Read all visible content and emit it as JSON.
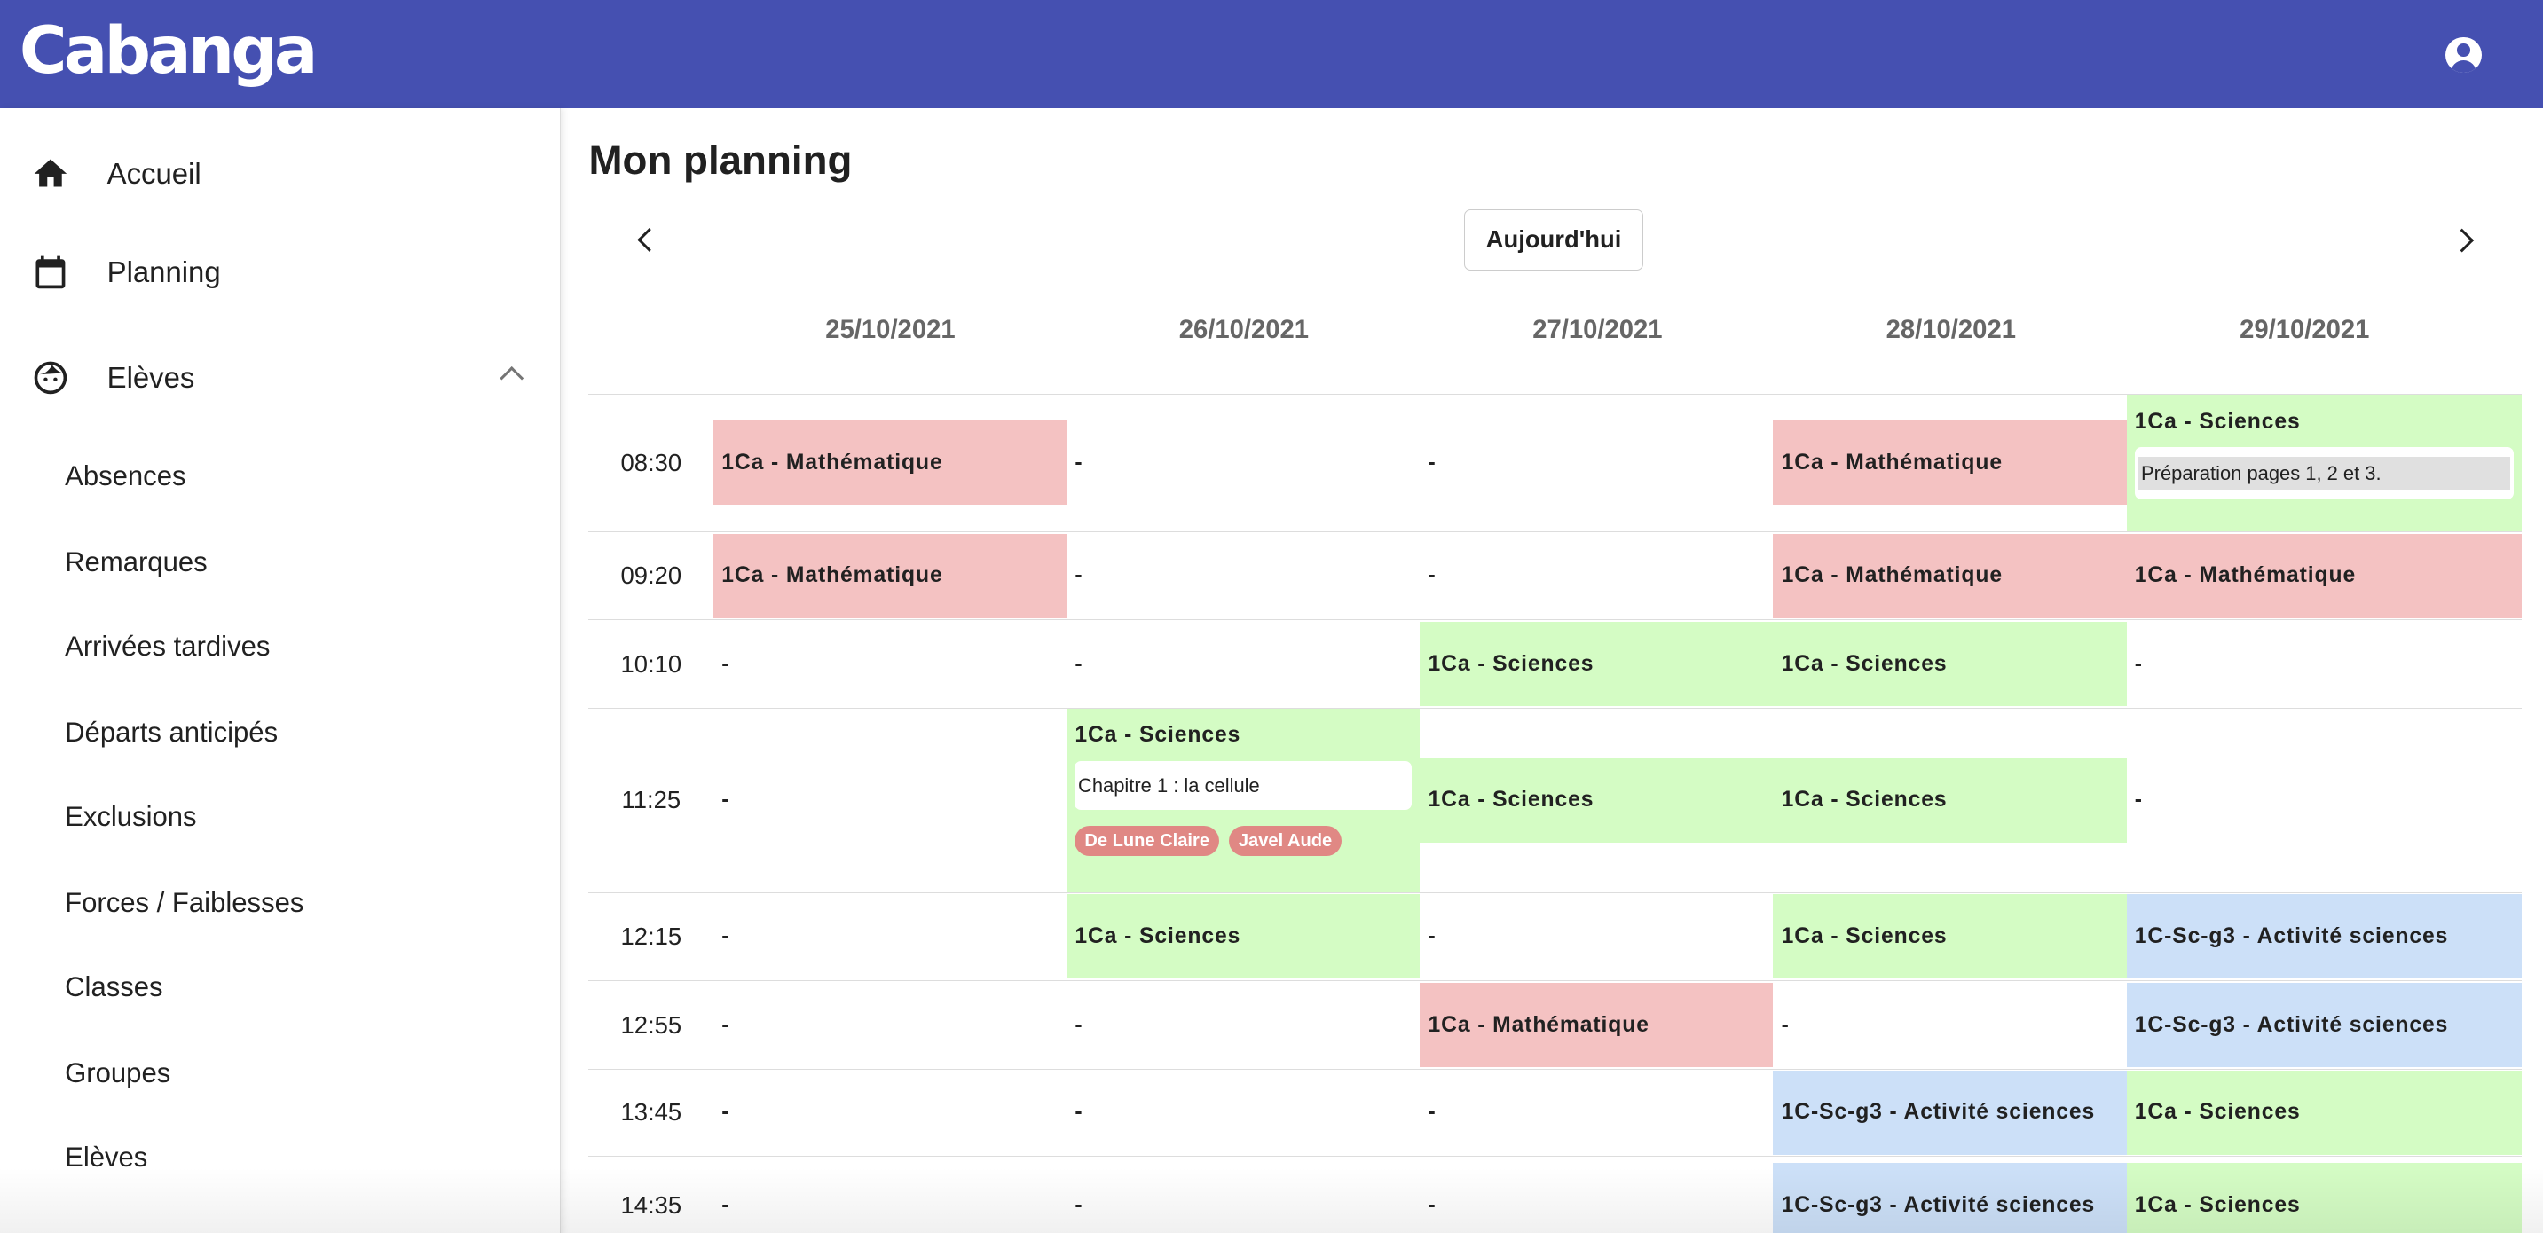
{
  "header": {
    "logo": "Cabanga",
    "account_icon": "account-circle-icon",
    "color": "#4550b1"
  },
  "sidebar": {
    "items": [
      {
        "label": "Accueil",
        "icon": "home-icon"
      },
      {
        "label": "Planning",
        "icon": "calendar-icon"
      },
      {
        "label": "Elèves",
        "icon": "face-icon",
        "expanded": true
      }
    ],
    "subitems": [
      "Absences",
      "Remarques",
      "Arrivées tardives",
      "Départs anticipés",
      "Exclusions",
      "Forces / Faiblesses",
      "Classes",
      "Groupes",
      "Elèves"
    ]
  },
  "main": {
    "title": "Mon planning",
    "today_label": "Aujourd'hui",
    "dates": [
      "25/10/2021",
      "26/10/2021",
      "27/10/2021",
      "28/10/2021",
      "29/10/2021"
    ],
    "colors": {
      "red": "#f4c2c2",
      "green": "#d4fcc4",
      "blue": "#cce0f8"
    },
    "rows": [
      {
        "time": "08:30",
        "cells": [
          {
            "text": "1Ca - Mathématique",
            "color": "red"
          },
          {
            "text": "-"
          },
          {
            "text": "-"
          },
          {
            "text": "1Ca - Mathématique",
            "color": "red"
          },
          {
            "text": "1Ca - Sciences",
            "color": "green",
            "comment": "Préparation pages 1, 2 et 3.",
            "comment_grey": true
          }
        ]
      },
      {
        "time": "09:20",
        "cells": [
          {
            "text": "1Ca - Mathématique",
            "color": "red"
          },
          {
            "text": "-"
          },
          {
            "text": "-"
          },
          {
            "text": "1Ca - Mathématique",
            "color": "red"
          },
          {
            "text": "1Ca - Mathématique",
            "color": "red"
          }
        ]
      },
      {
        "time": "10:10",
        "cells": [
          {
            "text": "-"
          },
          {
            "text": "-"
          },
          {
            "text": "1Ca - Sciences",
            "color": "green"
          },
          {
            "text": "1Ca - Sciences",
            "color": "green"
          },
          {
            "text": "-"
          }
        ]
      },
      {
        "time": "11:25",
        "cells": [
          {
            "text": "-"
          },
          {
            "text": "1Ca - Sciences",
            "color": "green",
            "comment": "Chapitre 1 : la cellule",
            "chips": [
              "De Lune Claire",
              "Javel Aude"
            ]
          },
          {
            "text": "1Ca - Sciences",
            "color": "green"
          },
          {
            "text": "1Ca - Sciences",
            "color": "green"
          },
          {
            "text": "-"
          }
        ]
      },
      {
        "time": "12:15",
        "cells": [
          {
            "text": "-"
          },
          {
            "text": "1Ca - Sciences",
            "color": "green"
          },
          {
            "text": "-"
          },
          {
            "text": "1Ca - Sciences",
            "color": "green"
          },
          {
            "text": "1C-Sc-g3 - Activité sciences",
            "color": "blue"
          }
        ]
      },
      {
        "time": "12:55",
        "cells": [
          {
            "text": "-"
          },
          {
            "text": "-"
          },
          {
            "text": "1Ca - Mathématique",
            "color": "red"
          },
          {
            "text": "-"
          },
          {
            "text": "1C-Sc-g3 - Activité sciences",
            "color": "blue"
          }
        ]
      },
      {
        "time": "13:45",
        "cells": [
          {
            "text": "-"
          },
          {
            "text": "-"
          },
          {
            "text": "-"
          },
          {
            "text": "1C-Sc-g3 - Activité sciences",
            "color": "blue"
          },
          {
            "text": "1Ca - Sciences",
            "color": "green"
          }
        ]
      },
      {
        "time": "14:35",
        "cells": [
          {
            "text": "-"
          },
          {
            "text": "-"
          },
          {
            "text": "-"
          },
          {
            "text": "1C-Sc-g3 - Activité sciences",
            "color": "blue"
          },
          {
            "text": "1Ca - Sciences",
            "color": "green"
          }
        ]
      }
    ]
  }
}
